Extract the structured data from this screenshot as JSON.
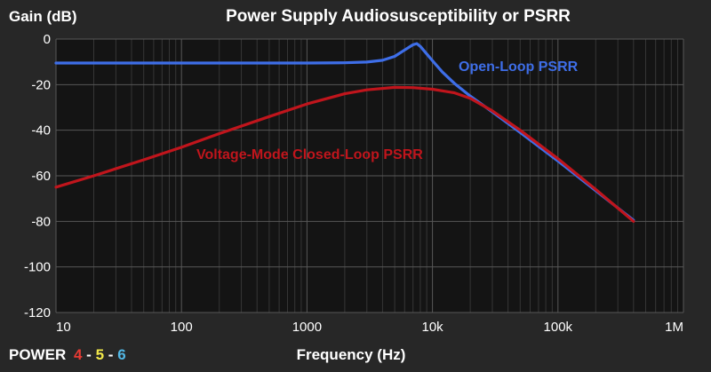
{
  "brand": {
    "word": "POWER",
    "n1": "4",
    "dash1": "-",
    "n2": "5",
    "dash2": "-",
    "n3": "6"
  },
  "chart_data": {
    "type": "line",
    "title": "Power Supply Audiosusceptibility or PSRR",
    "xlabel": "Frequency (Hz)",
    "ylabel": "Gain (dB)",
    "xscale": "log",
    "xlim": [
      10,
      1000000
    ],
    "ylim": [
      -120,
      0
    ],
    "xticks": [
      {
        "v": 10,
        "label": "10"
      },
      {
        "v": 100,
        "label": "100"
      },
      {
        "v": 1000,
        "label": "1000"
      },
      {
        "v": 10000,
        "label": "10k"
      },
      {
        "v": 100000,
        "label": "100k"
      },
      {
        "v": 1000000,
        "label": "1M"
      }
    ],
    "yticks": [
      {
        "v": 0,
        "label": "0"
      },
      {
        "v": -20,
        "label": "-20"
      },
      {
        "v": -40,
        "label": "-40"
      },
      {
        "v": -60,
        "label": "-60"
      },
      {
        "v": -80,
        "label": "-80"
      },
      {
        "v": -100,
        "label": "-100"
      },
      {
        "v": -120,
        "label": "-120"
      }
    ],
    "grid": true,
    "series": [
      {
        "name": "Open-Loop PSRR",
        "color": "#3e6ee8",
        "points": [
          [
            10,
            -10.5
          ],
          [
            100,
            -10.5
          ],
          [
            1000,
            -10.5
          ],
          [
            2000,
            -10.4
          ],
          [
            3000,
            -10.1
          ],
          [
            4000,
            -9.3
          ],
          [
            5000,
            -7.6
          ],
          [
            6000,
            -4.8
          ],
          [
            7000,
            -2.5
          ],
          [
            7500,
            -2.0
          ],
          [
            8000,
            -3.2
          ],
          [
            9000,
            -6.5
          ],
          [
            10000,
            -9.5
          ],
          [
            12000,
            -14.5
          ],
          [
            15000,
            -19.5
          ],
          [
            20000,
            -25.0
          ],
          [
            30000,
            -32.0
          ],
          [
            50000,
            -41.0
          ],
          [
            100000,
            -53.5
          ],
          [
            200000,
            -66.5
          ],
          [
            400000,
            -79.5
          ]
        ]
      },
      {
        "name": "Voltage-Mode Closed-Loop PSRR",
        "color": "#c0151c",
        "points": [
          [
            10,
            -65.0
          ],
          [
            20,
            -60.0
          ],
          [
            50,
            -53.0
          ],
          [
            100,
            -47.5
          ],
          [
            200,
            -41.5
          ],
          [
            500,
            -34.0
          ],
          [
            1000,
            -28.5
          ],
          [
            2000,
            -24.0
          ],
          [
            3000,
            -22.3
          ],
          [
            5000,
            -21.2
          ],
          [
            7000,
            -21.3
          ],
          [
            10000,
            -22.0
          ],
          [
            15000,
            -23.6
          ],
          [
            20000,
            -26.0
          ],
          [
            30000,
            -31.5
          ],
          [
            50000,
            -40.0
          ],
          [
            100000,
            -52.5
          ],
          [
            200000,
            -66.0
          ],
          [
            400000,
            -80.0
          ]
        ]
      }
    ]
  },
  "colors": {
    "background": "#272727",
    "plot_background": "#141414",
    "grid_major": "#575757",
    "grid_minor": "#363636",
    "brand_4": "#e83a33",
    "brand_5": "#f2e94a",
    "brand_6": "#52b8e6"
  }
}
